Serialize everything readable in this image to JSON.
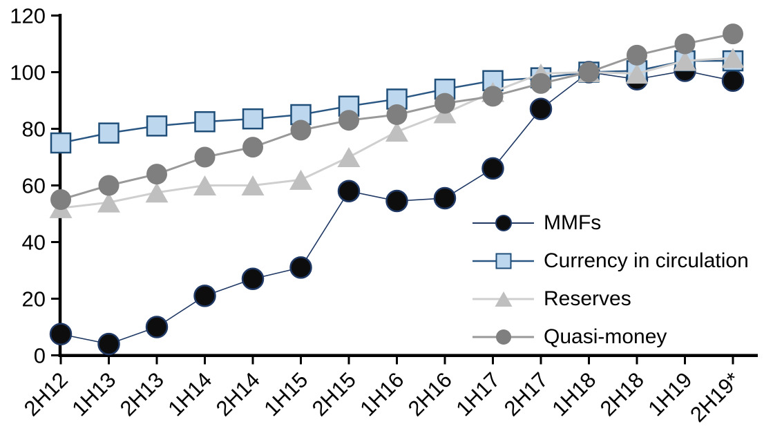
{
  "chart_data": {
    "type": "line",
    "title": "",
    "xlabel": "",
    "ylabel": "",
    "categories": [
      "2H12",
      "1H13",
      "2H13",
      "1H14",
      "2H14",
      "1H15",
      "2H15",
      "1H16",
      "2H16",
      "1H17",
      "2H17",
      "1H18",
      "2H18",
      "1H19",
      "2H19*"
    ],
    "series": [
      {
        "name": "MMFs",
        "marker": "circle",
        "marker_fill": "#0d0d0d",
        "marker_stroke": "#1f3864",
        "marker_size": 30,
        "line_color": "#1f3864",
        "line_width": 1.6,
        "values": [
          7.5,
          4,
          10,
          21,
          27,
          31,
          58,
          54.5,
          55.5,
          66,
          87,
          100,
          97.5,
          100.5,
          97
        ]
      },
      {
        "name": "Currency in circulation",
        "marker": "square",
        "marker_fill": "#bdd7ee",
        "marker_stroke": "#1f4e79",
        "marker_size": 28,
        "line_color": "#2a5783",
        "line_width": 2.5,
        "values": [
          75,
          78.5,
          81,
          82.5,
          83.5,
          85,
          88,
          90.5,
          94,
          97,
          98,
          100,
          100.5,
          104,
          104
        ]
      },
      {
        "name": "Reserves",
        "marker": "triangle",
        "marker_fill": "#bfbfbf",
        "marker_stroke": "none",
        "marker_size": 33,
        "line_color": "#cfcfcf",
        "line_width": 3,
        "values": [
          52,
          54,
          57.5,
          60,
          60,
          62,
          70,
          79,
          85.5,
          93,
          99.5,
          100,
          99.5,
          104,
          105
        ]
      },
      {
        "name": "Quasi-money",
        "marker": "circle",
        "marker_fill": "#7f7f7f",
        "marker_stroke": "none",
        "marker_size": 30,
        "line_color": "#999999",
        "line_width": 3,
        "values": [
          55,
          60,
          64,
          70,
          73.5,
          79.5,
          83,
          85,
          89,
          91.5,
          96,
          100,
          106,
          110,
          113.5
        ]
      }
    ],
    "ylim": [
      0,
      120
    ],
    "yticks": [
      0,
      20,
      40,
      60,
      80,
      100,
      120
    ],
    "grid": false,
    "legend_position": "middle-right",
    "axis_color": "#000000",
    "background": "#ffffff"
  }
}
